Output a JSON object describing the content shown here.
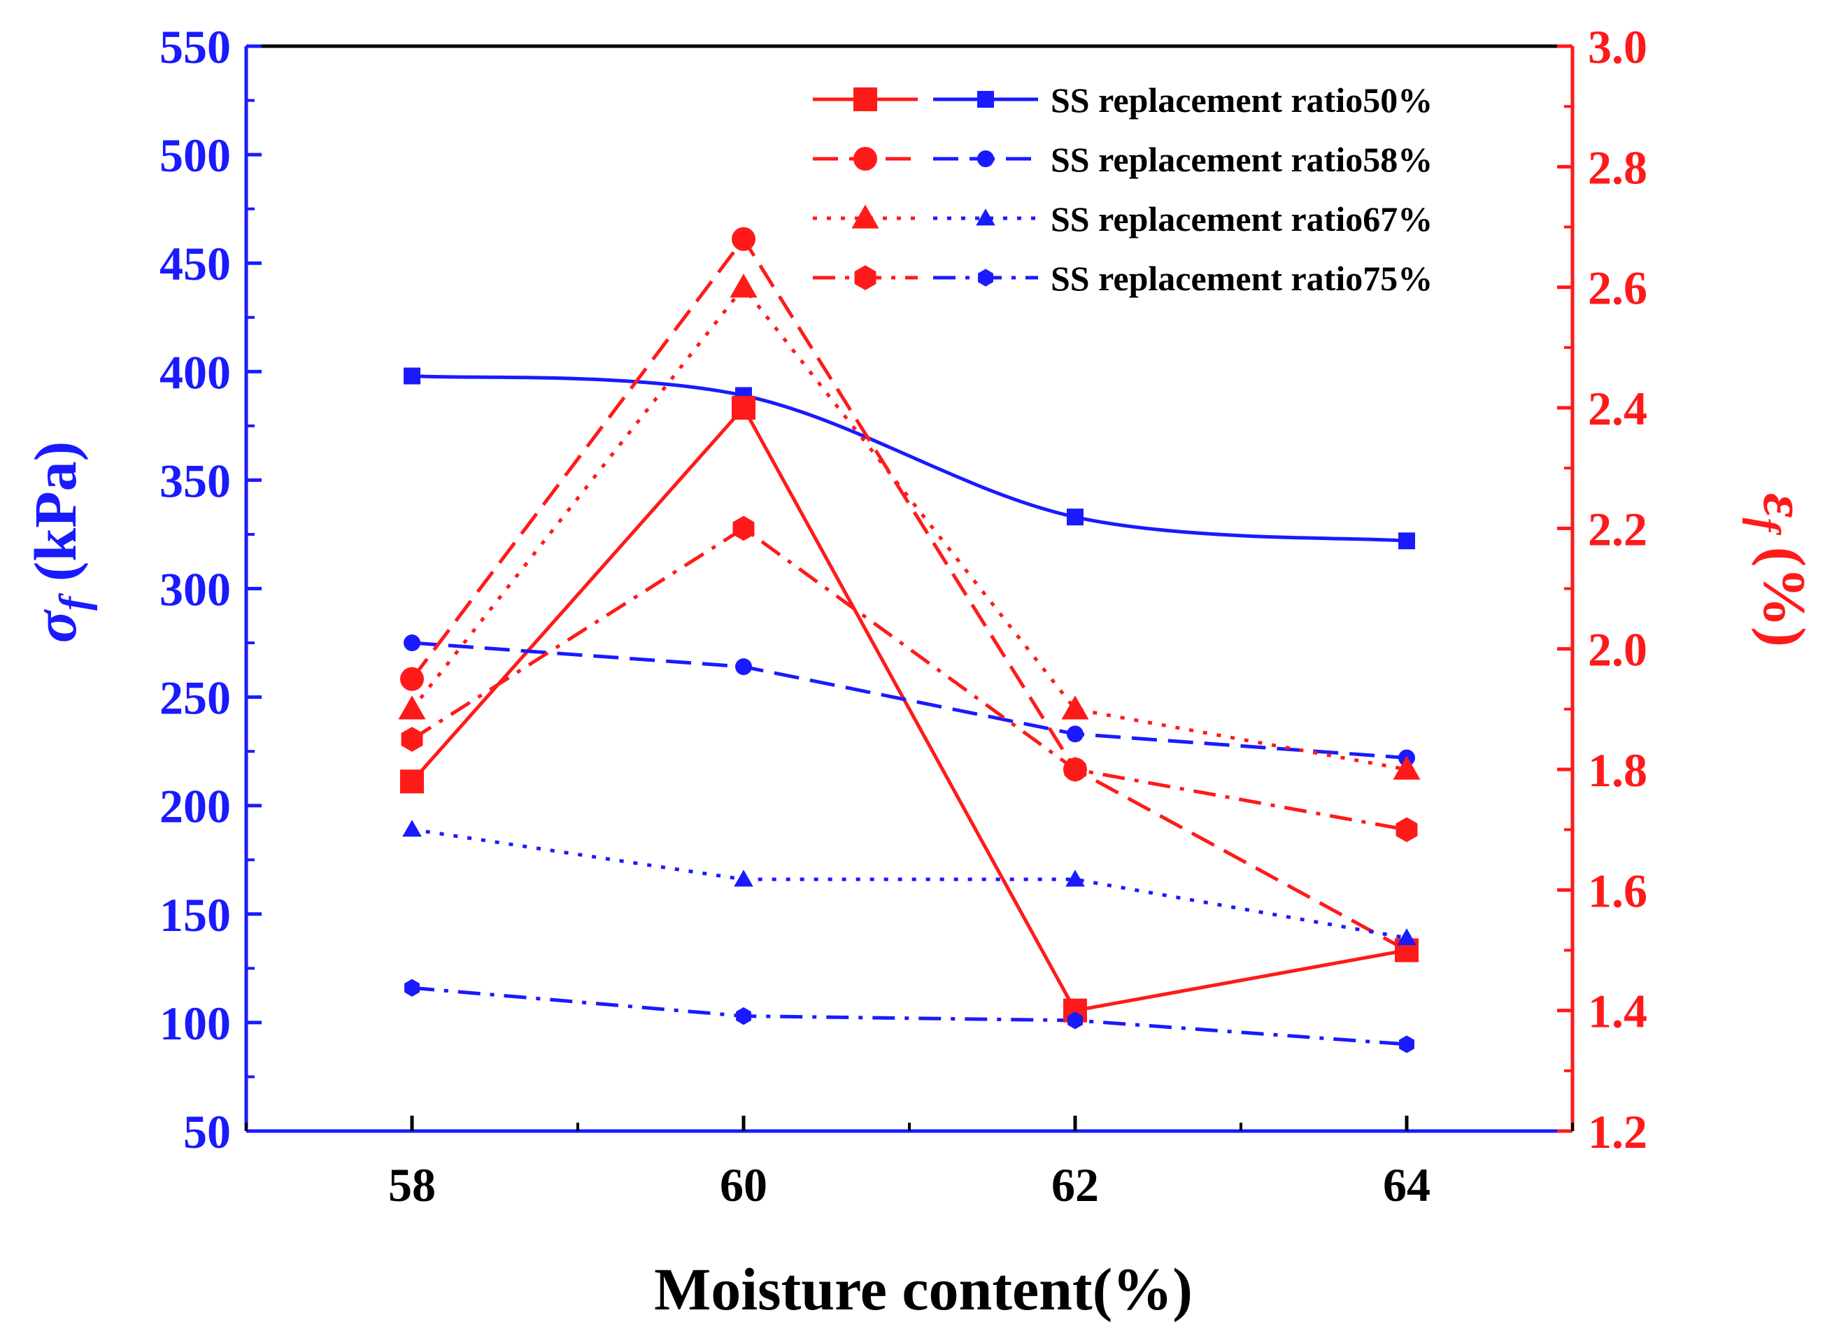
{
  "chart_data": {
    "type": "line",
    "xlabel": "Moisture content(%)",
    "ylabel_left": {
      "symbol": "σ",
      "subscript": "f",
      "unit": " (kPa)"
    },
    "ylabel_right": {
      "symbol": "ε",
      "subscript": "f",
      "unit": " (%)"
    },
    "xlim": [
      57,
      65
    ],
    "ylim_left": [
      50,
      550
    ],
    "ylim_right": [
      1.2,
      3.0
    ],
    "x": [
      58,
      60,
      62,
      64
    ],
    "x_ticks": [
      "58",
      "60",
      "62",
      "64"
    ],
    "y_left_ticks": [
      "50",
      "100",
      "150",
      "200",
      "250",
      "300",
      "350",
      "400",
      "450",
      "500",
      "550"
    ],
    "y_right_ticks": [
      "1.2",
      "1.4",
      "1.6",
      "1.8",
      "2.0",
      "2.2",
      "2.4",
      "2.6",
      "2.8",
      "3.0"
    ],
    "colors": {
      "left_axis": "#1a1aff",
      "right_axis": "#ff1a1a",
      "x_axis": "#000000"
    },
    "legend_position": "top-right",
    "series": [
      {
        "name": "SS replacement ratio50%",
        "marker": "square",
        "dash_style": "solid",
        "sigma_f": [
          398,
          389,
          333,
          322
        ],
        "epsilon_f": [
          1.78,
          2.4,
          1.4,
          1.5
        ]
      },
      {
        "name": "SS replacement ratio58%",
        "marker": "circle",
        "dash_style": "dash",
        "sigma_f": [
          275,
          264,
          233,
          222
        ],
        "epsilon_f": [
          1.95,
          2.68,
          1.8,
          1.5
        ]
      },
      {
        "name": "SS replacement ratio67%",
        "marker": "triangle",
        "dash_style": "dot",
        "sigma_f": [
          189,
          166,
          166,
          139
        ],
        "epsilon_f": [
          1.9,
          2.6,
          1.9,
          1.8
        ]
      },
      {
        "name": "SS replacement ratio75%",
        "marker": "hexagon",
        "dash_style": "dashdot",
        "sigma_f": [
          116,
          103,
          101,
          90
        ],
        "epsilon_f": [
          1.85,
          2.2,
          1.8,
          1.7
        ]
      }
    ]
  }
}
